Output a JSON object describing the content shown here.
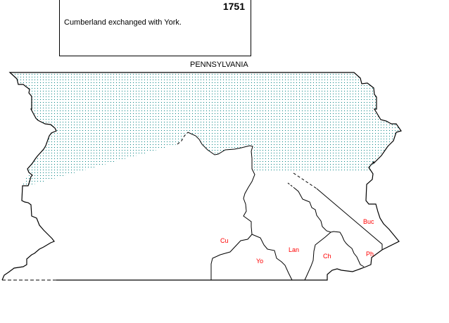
{
  "info": {
    "year": "1751",
    "description": "Cumberland exchanged with York."
  },
  "map": {
    "state_label": "PENNSYLVANIA",
    "counties": [
      {
        "abbr": "Cu",
        "name_hint": "Cumberland"
      },
      {
        "abbr": "Yo",
        "name_hint": "York"
      },
      {
        "abbr": "Lan",
        "name_hint": "Lancaster"
      },
      {
        "abbr": "Ch",
        "name_hint": "Chester"
      },
      {
        "abbr": "Buc",
        "name_hint": "Bucks"
      },
      {
        "abbr": "Ph",
        "name_hint": "Philadelphia"
      }
    ],
    "colors": {
      "label": "#ff0000",
      "shading": "#008080",
      "border": "#000000"
    }
  }
}
